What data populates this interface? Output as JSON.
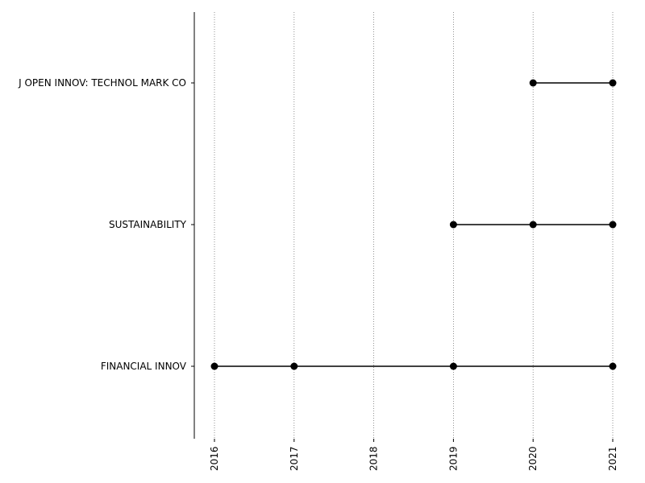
{
  "chart_data": {
    "type": "line",
    "title": "",
    "xlabel": "",
    "ylabel": "",
    "x_ticks": [
      "2016",
      "2017",
      "2018",
      "2019",
      "2020",
      "2021"
    ],
    "xlim": [
      2016,
      2021
    ],
    "grid": "vertical dotted",
    "categories": [
      "FINANCIAL INNOV",
      "SUSTAINABILITY",
      "J OPEN INNOV: TECHNOL MARK CO"
    ],
    "series": [
      {
        "category": "FINANCIAL INNOV",
        "x": [
          2016,
          2017,
          2019,
          2021
        ]
      },
      {
        "category": "SUSTAINABILITY",
        "x": [
          2019,
          2020,
          2021
        ]
      },
      {
        "category": "J OPEN INNOV: TECHNOL MARK CO",
        "x": [
          2020,
          2021
        ]
      }
    ],
    "colors": {
      "marker": "#000000",
      "line": "#000000",
      "grid": "#777777"
    }
  }
}
